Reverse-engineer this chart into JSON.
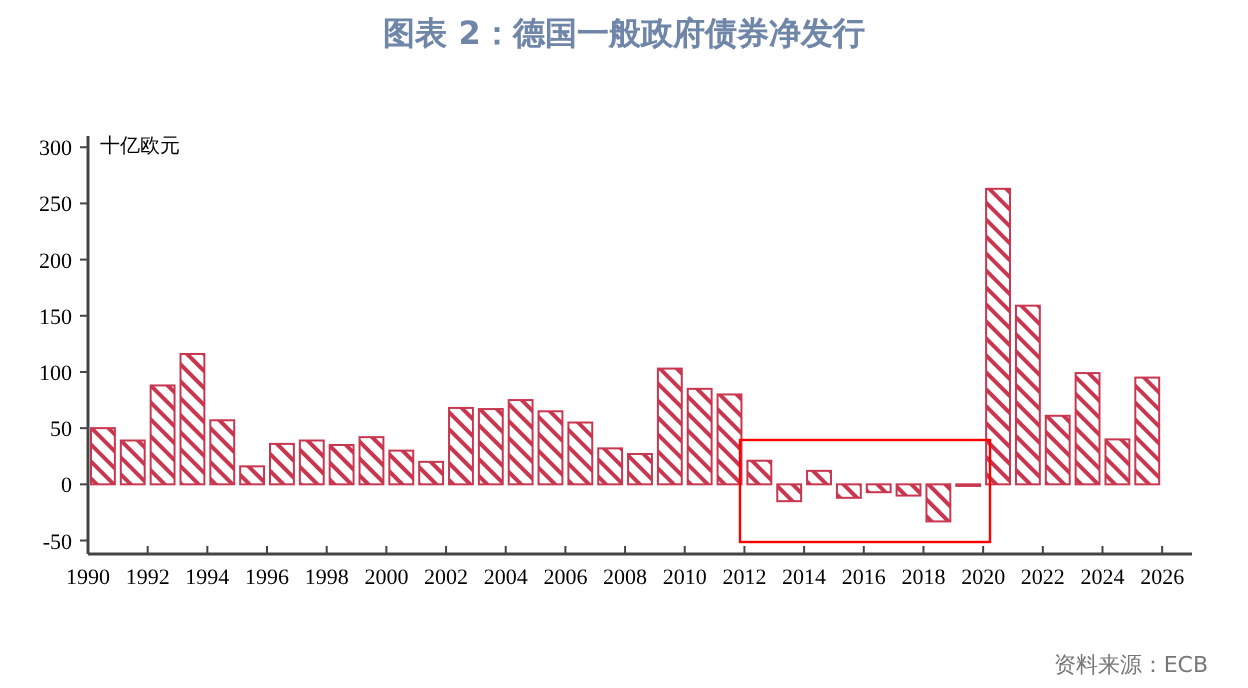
{
  "chart_data": {
    "type": "bar",
    "title": "图表 2：德国一般政府债券净发行",
    "ylabel": "十亿欧元",
    "annotations": [
      "资料来源：ECB"
    ],
    "x": [
      1990.5,
      1991.5,
      1992.5,
      1993.5,
      1994.5,
      1995.5,
      1996.5,
      1997.5,
      1998.5,
      1999.5,
      2000.5,
      2001.5,
      2002.5,
      2003.5,
      2004.5,
      2005.5,
      2006.5,
      2007.5,
      2008.5,
      2009.5,
      2010.5,
      2011.5,
      2012.5,
      2013.5,
      2014.5,
      2015.5,
      2016.5,
      2017.5,
      2018.5,
      2019.5,
      2020.5,
      2021.5,
      2022.5,
      2023.5,
      2024.5,
      2025.5
    ],
    "values": [
      50,
      39,
      88,
      116,
      57,
      16,
      36,
      39,
      35,
      42,
      30,
      20,
      68,
      67,
      75,
      65,
      55,
      32,
      27,
      103,
      85,
      80,
      21,
      -15,
      12,
      -12,
      -7,
      -10,
      -33,
      -1,
      263,
      159,
      61,
      99,
      40,
      95
    ],
    "color": "#c8374f",
    "xlim": [
      1990,
      2027
    ],
    "xticks": [
      1990,
      1992,
      1994,
      1996,
      1998,
      2000,
      2002,
      2004,
      2006,
      2008,
      2010,
      2012,
      2014,
      2016,
      2018,
      2020,
      2022,
      2024,
      2026
    ],
    "ylim": [
      -62,
      310
    ],
    "yticks": [
      -50,
      0,
      50,
      100,
      150,
      200,
      250,
      300
    ]
  }
}
